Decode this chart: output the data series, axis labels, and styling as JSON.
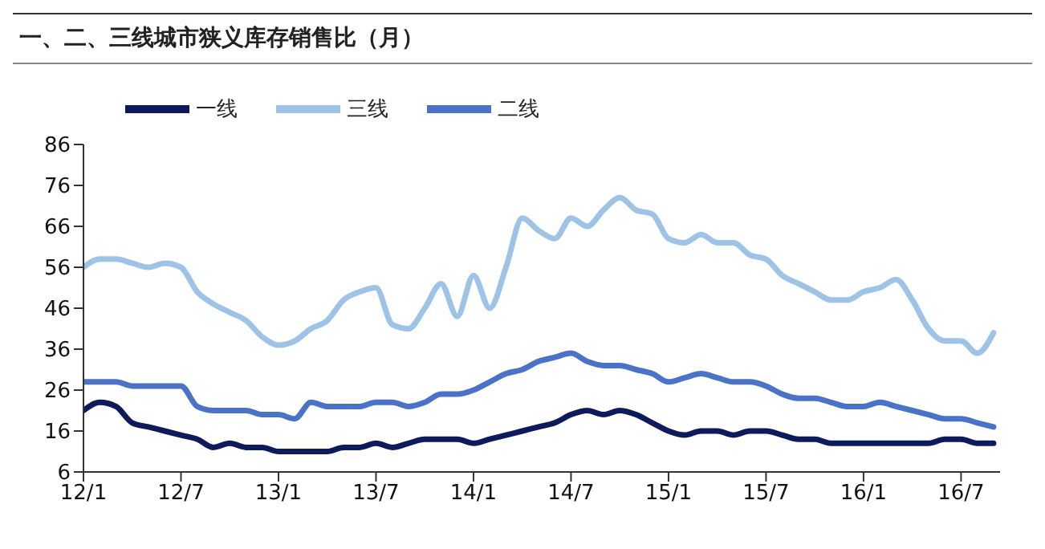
{
  "chart_data": {
    "type": "line",
    "title": "一、二、三线城市狭义库存销售比（月）",
    "categories": [
      "12/1",
      null,
      null,
      null,
      null,
      null,
      "12/7",
      null,
      null,
      null,
      null,
      null,
      "13/1",
      null,
      null,
      null,
      null,
      null,
      "13/7",
      null,
      null,
      null,
      null,
      null,
      "14/1",
      null,
      null,
      null,
      null,
      null,
      "14/7",
      null,
      null,
      null,
      null,
      null,
      "15/1",
      null,
      null,
      null,
      null,
      null,
      "15/7",
      null,
      null,
      null,
      null,
      null,
      "16/1",
      null,
      null,
      null,
      null,
      null,
      "16/7",
      null,
      null
    ],
    "series": [
      {
        "name": "一线",
        "color": "#0d1a5c",
        "values": [
          21,
          23,
          22,
          18,
          17,
          16,
          15,
          14,
          12,
          13,
          12,
          12,
          11,
          11,
          11,
          11,
          12,
          12,
          13,
          12,
          13,
          14,
          14,
          14,
          13,
          14,
          15,
          16,
          17,
          18,
          20,
          21,
          20,
          21,
          20,
          18,
          16,
          15,
          16,
          16,
          15,
          16,
          16,
          15,
          14,
          14,
          13,
          13,
          13,
          13,
          13,
          13,
          13,
          14,
          14,
          13,
          13
        ]
      },
      {
        "name": "二线",
        "color": "#4a73c8",
        "values": [
          28,
          28,
          28,
          27,
          27,
          27,
          27,
          22,
          21,
          21,
          21,
          20,
          20,
          19,
          23,
          22,
          22,
          22,
          23,
          23,
          22,
          23,
          25,
          25,
          26,
          28,
          30,
          31,
          33,
          34,
          35,
          33,
          32,
          32,
          31,
          30,
          28,
          29,
          30,
          29,
          28,
          28,
          27,
          25,
          24,
          24,
          23,
          22,
          22,
          23,
          22,
          21,
          20,
          19,
          19,
          18,
          17
        ]
      },
      {
        "name": "三线",
        "color": "#9dc3e6",
        "values": [
          56,
          58,
          58,
          57,
          56,
          57,
          56,
          50,
          47,
          45,
          43,
          39,
          37,
          38,
          41,
          43,
          48,
          50,
          51,
          42,
          41,
          46,
          52,
          44,
          54,
          46,
          56,
          68,
          65,
          63,
          68,
          66,
          70,
          73,
          70,
          69,
          63,
          62,
          64,
          62,
          62,
          59,
          58,
          54,
          52,
          50,
          48,
          48,
          50,
          51,
          53,
          48,
          41,
          38,
          38,
          35,
          40
        ]
      }
    ],
    "ylim": [
      6,
      86
    ],
    "yticks": [
      6,
      16,
      26,
      36,
      46,
      56,
      66,
      76,
      86
    ],
    "grid": false,
    "legend": "top left"
  }
}
